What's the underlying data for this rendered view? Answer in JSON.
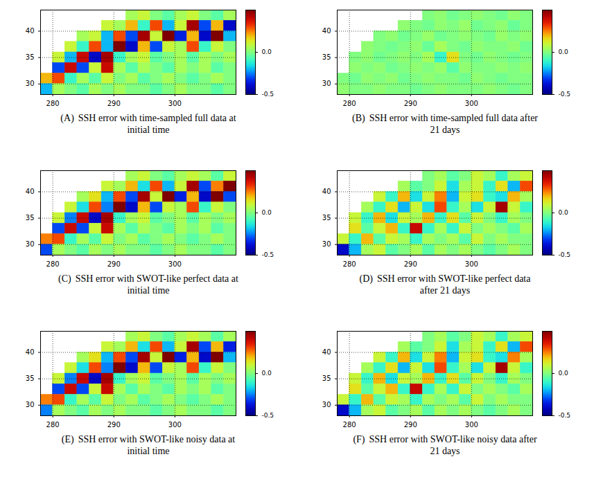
{
  "chart_data": [
    {
      "type": "heatmap",
      "label": "(A)",
      "title": "SSH error with time-sampled full data at initial time",
      "x": [
        279,
        281,
        283,
        285,
        287,
        289,
        291,
        293,
        295,
        297,
        299,
        301,
        303,
        305,
        307,
        309
      ],
      "y": [
        43,
        41,
        39,
        37,
        35,
        33,
        31,
        29
      ],
      "values": [
        [
          null,
          null,
          null,
          null,
          null,
          null,
          null,
          0.05,
          0.1,
          0.0,
          -0.05,
          0.05,
          0.1,
          0.0,
          -0.05,
          0.05
        ],
        [
          null,
          null,
          null,
          null,
          null,
          0.1,
          0.05,
          0.2,
          -0.1,
          0.3,
          -0.2,
          0.1,
          0.45,
          -0.3,
          0.2,
          -0.4
        ],
        [
          null,
          null,
          null,
          0.05,
          0.1,
          -0.2,
          0.3,
          -0.3,
          0.45,
          0.1,
          0.5,
          -0.35,
          0.2,
          -0.4,
          0.5,
          -0.2
        ],
        [
          null,
          null,
          0.1,
          -0.1,
          0.3,
          -0.2,
          0.5,
          -0.4,
          0.2,
          -0.3,
          0.1,
          0.05,
          0.3,
          -0.1,
          0.1,
          0.0
        ],
        [
          null,
          0.1,
          -0.2,
          0.4,
          -0.4,
          0.45,
          -0.1,
          0.05,
          0.1,
          -0.05,
          0.0,
          0.05,
          -0.05,
          0.05,
          0.0,
          0.05
        ],
        [
          null,
          -0.3,
          0.4,
          -0.3,
          0.1,
          0.4,
          0.05,
          -0.05,
          0.05,
          0.0,
          -0.05,
          0.05,
          0.0,
          0.05,
          -0.05,
          0.0
        ],
        [
          0.2,
          0.3,
          -0.1,
          0.05,
          -0.05,
          0.1,
          0.0,
          0.05,
          -0.05,
          0.0,
          0.05,
          0.0,
          -0.05,
          0.0,
          0.05,
          0.0
        ],
        [
          -0.2,
          0.05,
          0.0,
          -0.05,
          0.05,
          0.0,
          0.05,
          0.0,
          0.0,
          -0.05,
          0.0,
          0.05,
          0.0,
          0.0,
          -0.05,
          0.0
        ]
      ],
      "xlim": [
        278,
        310
      ],
      "ylim": [
        28,
        44
      ],
      "xticks": [
        280,
        290,
        300
      ],
      "yticks": [
        30,
        35,
        40
      ],
      "grid": true,
      "colorbar": {
        "range": [
          -0.5,
          0.5
        ],
        "ticks": [
          {
            "value": 0,
            "label": "0.0"
          },
          {
            "value": -0.5,
            "label": "-0.5"
          }
        ]
      }
    },
    {
      "type": "heatmap",
      "label": "(B)",
      "title": "SSH error with time-sampled full data after 21 days",
      "x": [
        279,
        281,
        283,
        285,
        287,
        289,
        291,
        293,
        295,
        297,
        299,
        301,
        303,
        305,
        307,
        309
      ],
      "y": [
        43,
        41,
        39,
        37,
        35,
        33,
        31,
        29
      ],
      "values": [
        [
          null,
          null,
          null,
          null,
          null,
          null,
          null,
          0.0,
          0.02,
          -0.02,
          0.0,
          0.02,
          0.0,
          -0.02,
          0.02,
          0.0
        ],
        [
          null,
          null,
          null,
          null,
          null,
          0.02,
          0.0,
          -0.02,
          0.02,
          0.0,
          0.03,
          -0.02,
          0.0,
          0.02,
          -0.03,
          0.0
        ],
        [
          null,
          null,
          null,
          0.0,
          0.02,
          -0.02,
          0.0,
          0.03,
          -0.02,
          0.0,
          0.02,
          0.0,
          -0.02,
          0.03,
          0.0,
          0.02
        ],
        [
          null,
          null,
          0.02,
          0.0,
          -0.02,
          0.0,
          0.02,
          -0.03,
          0.05,
          0.0,
          -0.02,
          0.02,
          0.0,
          0.0,
          0.02,
          -0.02
        ],
        [
          null,
          0.0,
          0.02,
          -0.02,
          0.0,
          0.02,
          0.0,
          0.05,
          -0.1,
          0.15,
          0.0,
          -0.02,
          0.02,
          0.0,
          -0.02,
          0.0
        ],
        [
          null,
          0.02,
          0.0,
          0.02,
          -0.02,
          0.0,
          0.02,
          0.0,
          0.03,
          -0.05,
          0.02,
          0.0,
          0.0,
          0.02,
          0.0,
          0.02
        ],
        [
          0.0,
          -0.02,
          0.02,
          0.0,
          0.02,
          -0.02,
          0.0,
          0.02,
          0.0,
          0.0,
          -0.02,
          0.02,
          0.0,
          -0.02,
          0.0,
          0.0
        ],
        [
          0.02,
          0.0,
          0.0,
          0.02,
          0.0,
          0.0,
          -0.02,
          0.0,
          0.02,
          0.0,
          0.0,
          0.0,
          0.02,
          0.0,
          -0.02,
          0.0
        ]
      ],
      "xlim": [
        278,
        310
      ],
      "ylim": [
        28,
        44
      ],
      "xticks": [
        280,
        290,
        300
      ],
      "yticks": [
        30,
        35,
        40
      ],
      "grid": true,
      "colorbar": {
        "range": [
          -0.5,
          0.5
        ],
        "ticks": [
          {
            "value": 0,
            "label": "0.0"
          },
          {
            "value": -0.5,
            "label": "-0.5"
          }
        ]
      }
    },
    {
      "type": "heatmap",
      "label": "(C)",
      "title": "SSH error with SWOT-like perfect data at initial time",
      "x": [
        279,
        281,
        283,
        285,
        287,
        289,
        291,
        293,
        295,
        297,
        299,
        301,
        303,
        305,
        307,
        309
      ],
      "y": [
        43,
        41,
        39,
        37,
        35,
        33,
        31,
        29
      ],
      "values": [
        [
          null,
          null,
          null,
          null,
          null,
          null,
          null,
          0.05,
          0.1,
          0.0,
          -0.05,
          0.05,
          0.1,
          0.05,
          -0.05,
          0.1
        ],
        [
          null,
          null,
          null,
          null,
          null,
          0.1,
          0.05,
          0.2,
          -0.15,
          0.3,
          -0.2,
          0.1,
          0.45,
          -0.3,
          0.25,
          0.5
        ],
        [
          null,
          null,
          null,
          0.05,
          0.15,
          -0.2,
          0.3,
          -0.3,
          0.45,
          0.1,
          0.5,
          -0.35,
          0.2,
          -0.4,
          0.5,
          -0.3
        ],
        [
          null,
          null,
          0.1,
          -0.15,
          0.3,
          -0.25,
          0.5,
          -0.4,
          0.2,
          -0.3,
          0.1,
          0.05,
          0.3,
          -0.1,
          0.1,
          0.0
        ],
        [
          null,
          0.1,
          -0.25,
          0.4,
          -0.4,
          0.45,
          -0.1,
          0.05,
          0.1,
          -0.05,
          0.0,
          0.05,
          -0.05,
          0.05,
          0.0,
          0.05
        ],
        [
          null,
          -0.3,
          0.4,
          -0.3,
          0.1,
          0.4,
          0.05,
          -0.05,
          0.05,
          0.0,
          -0.05,
          0.05,
          0.0,
          0.05,
          -0.05,
          0.0
        ],
        [
          0.25,
          0.3,
          -0.1,
          0.05,
          -0.05,
          0.1,
          0.0,
          0.05,
          -0.05,
          0.0,
          0.05,
          0.0,
          -0.05,
          0.0,
          0.05,
          0.0
        ],
        [
          -0.3,
          0.05,
          0.0,
          -0.05,
          0.05,
          0.0,
          0.05,
          0.0,
          0.0,
          -0.05,
          0.0,
          0.05,
          0.0,
          0.0,
          -0.05,
          0.0
        ]
      ],
      "xlim": [
        278,
        310
      ],
      "ylim": [
        28,
        44
      ],
      "xticks": [
        280,
        290,
        300
      ],
      "yticks": [
        30,
        35,
        40
      ],
      "grid": true,
      "colorbar": {
        "range": [
          -0.5,
          0.5
        ],
        "ticks": [
          {
            "value": 0,
            "label": "0.0"
          },
          {
            "value": -0.5,
            "label": "-0.5"
          }
        ]
      }
    },
    {
      "type": "heatmap",
      "label": "(D)",
      "title": "SSH error with SWOT-like perfect data after 21 days",
      "x": [
        279,
        281,
        283,
        285,
        287,
        289,
        291,
        293,
        295,
        297,
        299,
        301,
        303,
        305,
        307,
        309
      ],
      "y": [
        43,
        41,
        39,
        37,
        35,
        33,
        31,
        29
      ],
      "values": [
        [
          null,
          null,
          null,
          null,
          null,
          null,
          null,
          0.0,
          0.05,
          -0.05,
          0.0,
          0.1,
          0.05,
          -0.1,
          0.05,
          0.1
        ],
        [
          null,
          null,
          null,
          null,
          null,
          0.05,
          -0.05,
          0.0,
          0.1,
          -0.15,
          0.05,
          0.1,
          -0.1,
          0.15,
          -0.2,
          0.3
        ],
        [
          null,
          null,
          null,
          0.1,
          -0.1,
          0.2,
          -0.15,
          0.1,
          0.25,
          -0.2,
          0.1,
          0.15,
          -0.1,
          -0.15,
          0.2,
          0.05
        ],
        [
          null,
          null,
          0.05,
          -0.1,
          0.15,
          -0.2,
          0.1,
          -0.15,
          0.3,
          -0.1,
          0.05,
          -0.15,
          0.1,
          0.45,
          0.1,
          -0.1
        ],
        [
          null,
          0.1,
          -0.1,
          0.2,
          -0.15,
          0.1,
          0.05,
          0.2,
          -0.1,
          0.15,
          -0.05,
          0.1,
          0.0,
          -0.1,
          0.05,
          0.0
        ],
        [
          null,
          0.15,
          -0.05,
          0.1,
          0.2,
          -0.1,
          0.4,
          -0.1,
          0.05,
          -0.1,
          0.1,
          0.0,
          0.05,
          0.0,
          -0.05,
          0.05
        ],
        [
          0.1,
          -0.1,
          0.2,
          -0.05,
          0.1,
          0.05,
          -0.1,
          0.05,
          0.0,
          0.05,
          -0.05,
          0.1,
          0.0,
          0.05,
          0.0,
          0.0
        ],
        [
          -0.4,
          -0.2,
          0.05,
          0.1,
          -0.05,
          0.0,
          0.05,
          -0.05,
          0.05,
          0.0,
          0.05,
          0.0,
          -0.05,
          0.0,
          0.05,
          0.0
        ]
      ],
      "xlim": [
        278,
        310
      ],
      "ylim": [
        28,
        44
      ],
      "xticks": [
        280,
        290,
        300
      ],
      "yticks": [
        30,
        35,
        40
      ],
      "grid": true,
      "colorbar": {
        "range": [
          -0.5,
          0.5
        ],
        "ticks": [
          {
            "value": 0,
            "label": "0.0"
          },
          {
            "value": -0.5,
            "label": "-0.5"
          }
        ]
      }
    },
    {
      "type": "heatmap",
      "label": "(E)",
      "title": "SSH error with SWOT-like noisy data at initial time",
      "x": [
        279,
        281,
        283,
        285,
        287,
        289,
        291,
        293,
        295,
        297,
        299,
        301,
        303,
        305,
        307,
        309
      ],
      "y": [
        43,
        41,
        39,
        37,
        35,
        33,
        31,
        29
      ],
      "values": [
        [
          null,
          null,
          null,
          null,
          null,
          null,
          null,
          0.05,
          0.1,
          0.0,
          -0.05,
          0.05,
          0.1,
          0.05,
          -0.05,
          0.05
        ],
        [
          null,
          null,
          null,
          null,
          null,
          0.1,
          0.05,
          0.2,
          -0.15,
          0.3,
          -0.2,
          0.1,
          0.45,
          -0.3,
          0.2,
          -0.35
        ],
        [
          null,
          null,
          null,
          0.05,
          0.15,
          -0.2,
          0.3,
          -0.3,
          0.45,
          0.1,
          0.5,
          -0.35,
          0.2,
          -0.4,
          0.5,
          -0.2
        ],
        [
          null,
          null,
          0.1,
          -0.15,
          0.3,
          -0.25,
          0.5,
          -0.4,
          0.2,
          -0.3,
          0.1,
          0.05,
          0.3,
          -0.1,
          0.1,
          0.0
        ],
        [
          null,
          0.1,
          -0.25,
          0.4,
          -0.4,
          0.45,
          -0.1,
          0.05,
          0.1,
          -0.05,
          0.0,
          0.05,
          -0.05,
          0.05,
          0.0,
          0.05
        ],
        [
          null,
          -0.3,
          0.4,
          -0.3,
          0.1,
          0.4,
          0.05,
          -0.05,
          0.05,
          0.0,
          -0.05,
          0.05,
          0.0,
          0.05,
          -0.05,
          0.0
        ],
        [
          0.25,
          0.3,
          -0.1,
          0.05,
          -0.05,
          0.1,
          0.0,
          0.05,
          -0.05,
          0.0,
          0.05,
          0.0,
          -0.05,
          0.0,
          0.05,
          0.0
        ],
        [
          -0.25,
          0.05,
          0.0,
          -0.05,
          0.05,
          0.0,
          0.05,
          0.0,
          0.0,
          -0.05,
          0.0,
          0.05,
          0.0,
          0.0,
          -0.05,
          0.0
        ]
      ],
      "xlim": [
        278,
        310
      ],
      "ylim": [
        28,
        44
      ],
      "xticks": [
        280,
        290,
        300
      ],
      "yticks": [
        30,
        35,
        40
      ],
      "grid": true,
      "colorbar": {
        "range": [
          -0.5,
          0.5
        ],
        "ticks": [
          {
            "value": 0,
            "label": "0.0"
          },
          {
            "value": -0.5,
            "label": "-0.5"
          }
        ]
      }
    },
    {
      "type": "heatmap",
      "label": "(F)",
      "title": "SSH error with SWOT-like noisy data after 21 days",
      "x": [
        279,
        281,
        283,
        285,
        287,
        289,
        291,
        293,
        295,
        297,
        299,
        301,
        303,
        305,
        307,
        309
      ],
      "y": [
        43,
        41,
        39,
        37,
        35,
        33,
        31,
        29
      ],
      "values": [
        [
          null,
          null,
          null,
          null,
          null,
          null,
          null,
          0.0,
          0.05,
          -0.05,
          0.0,
          0.1,
          0.05,
          -0.1,
          0.05,
          0.1
        ],
        [
          null,
          null,
          null,
          null,
          null,
          0.05,
          -0.05,
          0.0,
          0.1,
          -0.15,
          0.05,
          0.1,
          -0.1,
          0.15,
          -0.2,
          0.3
        ],
        [
          null,
          null,
          null,
          0.1,
          -0.1,
          0.2,
          -0.15,
          0.1,
          0.25,
          -0.2,
          0.1,
          0.15,
          -0.1,
          -0.15,
          0.25,
          0.05
        ],
        [
          null,
          null,
          0.05,
          -0.1,
          0.15,
          -0.2,
          0.1,
          -0.15,
          0.3,
          -0.1,
          0.05,
          -0.15,
          0.1,
          0.45,
          0.1,
          -0.1
        ],
        [
          null,
          0.1,
          -0.1,
          0.2,
          -0.15,
          0.1,
          0.05,
          0.2,
          -0.1,
          0.15,
          -0.05,
          0.1,
          0.0,
          -0.1,
          0.05,
          0.0
        ],
        [
          null,
          0.15,
          -0.05,
          0.1,
          0.2,
          -0.1,
          0.4,
          -0.1,
          0.05,
          -0.1,
          0.1,
          0.0,
          0.05,
          0.0,
          -0.05,
          0.05
        ],
        [
          0.1,
          -0.1,
          0.2,
          -0.05,
          0.1,
          0.05,
          -0.1,
          0.05,
          0.0,
          0.05,
          -0.05,
          0.1,
          0.0,
          0.05,
          0.0,
          0.0
        ],
        [
          -0.4,
          -0.2,
          0.05,
          0.1,
          -0.05,
          0.0,
          0.05,
          -0.05,
          0.05,
          0.0,
          0.05,
          0.0,
          -0.05,
          0.0,
          0.05,
          0.0
        ]
      ],
      "xlim": [
        278,
        310
      ],
      "ylim": [
        28,
        44
      ],
      "xticks": [
        280,
        290,
        300
      ],
      "yticks": [
        30,
        35,
        40
      ],
      "grid": true,
      "colorbar": {
        "range": [
          -0.5,
          0.5
        ],
        "ticks": [
          {
            "value": 0,
            "label": "0.0"
          },
          {
            "value": -0.5,
            "label": "-0.5"
          }
        ]
      }
    }
  ]
}
